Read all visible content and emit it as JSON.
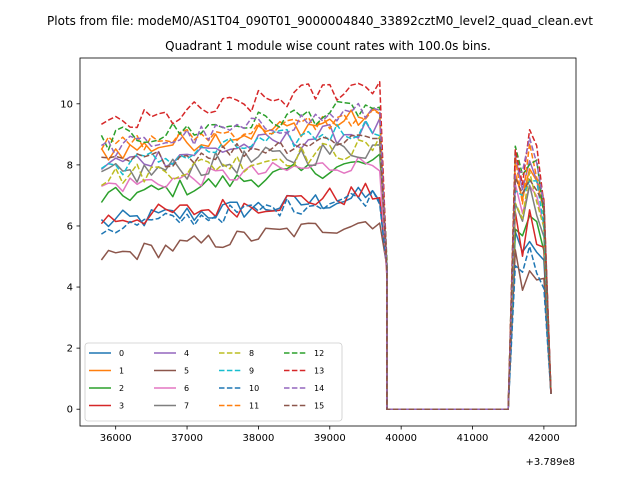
{
  "figure": {
    "suptitle": "Plots from file: modeM0/AS1T04_090T01_9000004840_33892cztM0_level2_quad_clean.evt",
    "x_offset_label": "+3.789e8"
  },
  "chart_data": {
    "type": "line",
    "title": "Quadrant 1 module wise count rates with 100.0s bins.",
    "xlabel": "",
    "ylabel": "",
    "x_offset": 378900000,
    "xlim": [
      35500,
      42450
    ],
    "ylim": [
      -0.55,
      11.5
    ],
    "x_ticks": [
      36000,
      37000,
      38000,
      39000,
      40000,
      41000,
      42000
    ],
    "y_ticks": [
      0,
      2,
      4,
      6,
      8,
      10
    ],
    "x_tick_labels": [
      "36000",
      "37000",
      "38000",
      "39000",
      "40000",
      "41000",
      "42000"
    ],
    "y_tick_labels": [
      "0",
      "2",
      "4",
      "6",
      "8",
      "10"
    ],
    "grid": false,
    "legend": {
      "placement": "lower-left",
      "columns": 4
    },
    "x_values_note": "x in seconds relative to offset, 100 s bins",
    "segments": [
      {
        "start": 35800,
        "step": 100,
        "count": 40
      },
      {
        "start": 39800,
        "step": 100,
        "count": 17
      },
      {
        "start": 41500,
        "step": 100,
        "count": 7
      }
    ],
    "series": [
      {
        "name": "0",
        "color": "#1f77b4",
        "dash": "solid",
        "base": 6.1,
        "trend": 0.9,
        "noise": 0.35,
        "burst": 6.0
      },
      {
        "name": "1",
        "color": "#ff7f0e",
        "dash": "solid",
        "base": 8.4,
        "trend": 1.2,
        "noise": 0.35,
        "burst": 8.4
      },
      {
        "name": "2",
        "color": "#2ca02c",
        "dash": "solid",
        "base": 6.9,
        "trend": 1.2,
        "noise": 0.3,
        "burst": 7.0
      },
      {
        "name": "3",
        "color": "#d62728",
        "dash": "solid",
        "base": 6.2,
        "trend": 0.9,
        "noise": 0.35,
        "burst": 6.6
      },
      {
        "name": "4",
        "color": "#9467bd",
        "dash": "solid",
        "base": 8.0,
        "trend": 1.2,
        "noise": 0.35,
        "burst": 8.6
      },
      {
        "name": "5",
        "color": "#8c564b",
        "dash": "solid",
        "base": 5.0,
        "trend": 1.2,
        "noise": 0.3,
        "burst": 5.3
      },
      {
        "name": "6",
        "color": "#e377c2",
        "dash": "solid",
        "base": 7.3,
        "trend": 0.8,
        "noise": 0.3,
        "burst": 7.6
      },
      {
        "name": "7",
        "color": "#7f7f7f",
        "dash": "solid",
        "base": 7.6,
        "trend": 1.0,
        "noise": 0.4,
        "burst": 8.0
      },
      {
        "name": "8",
        "color": "#bcbd22",
        "dash": "dashed",
        "base": 7.6,
        "trend": 1.0,
        "noise": 0.35,
        "burst": 8.0
      },
      {
        "name": "9",
        "color": "#17becf",
        "dash": "dashed",
        "base": 7.9,
        "trend": 1.4,
        "noise": 0.35,
        "burst": 8.2
      },
      {
        "name": "10",
        "color": "#1f77b4",
        "dash": "dashed",
        "base": 5.9,
        "trend": 1.1,
        "noise": 0.3,
        "burst": 5.8
      },
      {
        "name": "11",
        "color": "#ff7f0e",
        "dash": "dashed",
        "base": 8.6,
        "trend": 1.0,
        "noise": 0.3,
        "burst": 8.7
      },
      {
        "name": "12",
        "color": "#2ca02c",
        "dash": "dashed",
        "base": 8.8,
        "trend": 1.1,
        "noise": 0.35,
        "burst": 9.0
      },
      {
        "name": "13",
        "color": "#d62728",
        "dash": "dashed",
        "base": 9.2,
        "trend": 1.5,
        "noise": 0.4,
        "burst": 9.6
      },
      {
        "name": "14",
        "color": "#9467bd",
        "dash": "dashed",
        "base": 8.5,
        "trend": 1.3,
        "noise": 0.35,
        "burst": 9.1
      },
      {
        "name": "15",
        "color": "#8c564b",
        "dash": "dashed",
        "base": 8.0,
        "trend": 1.0,
        "noise": 0.3,
        "burst": 8.3
      }
    ]
  }
}
